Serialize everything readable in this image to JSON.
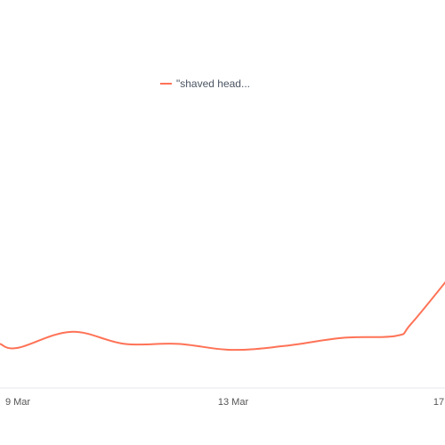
{
  "chart_data": {
    "type": "line",
    "title": "",
    "xlabel": "",
    "ylabel": "",
    "x_tick_labels": [
      "9 Mar",
      "13 Mar",
      "17"
    ],
    "x": [
      "8 Mar",
      "9 Mar",
      "10 Mar",
      "11 Mar",
      "12 Mar",
      "13 Mar",
      "14 Mar",
      "15 Mar",
      "16 Mar",
      "17 Mar",
      "17 Mar"
    ],
    "series": [
      {
        "name": "\"shaved head...",
        "color": "#ff7256",
        "values": [
          22,
          20,
          28,
          22,
          22,
          19,
          21,
          25,
          26,
          32,
          58
        ]
      }
    ],
    "ylim": [
      0,
      100
    ],
    "grid": false,
    "legend_position": "top"
  }
}
